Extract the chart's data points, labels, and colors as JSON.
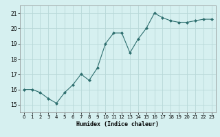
{
  "x": [
    0,
    1,
    2,
    3,
    4,
    5,
    6,
    7,
    8,
    9,
    10,
    11,
    12,
    13,
    14,
    15,
    16,
    17,
    18,
    19,
    20,
    21,
    22,
    23
  ],
  "y": [
    16.0,
    16.0,
    15.8,
    15.4,
    15.1,
    15.8,
    16.3,
    17.0,
    16.6,
    17.4,
    19.0,
    19.7,
    19.7,
    18.4,
    19.3,
    20.0,
    21.0,
    20.7,
    20.5,
    20.4,
    20.4,
    20.5,
    20.6,
    20.6
  ],
  "ylim": [
    14.5,
    21.5
  ],
  "yticks": [
    15,
    16,
    17,
    18,
    19,
    20,
    21
  ],
  "xlim": [
    -0.5,
    23.5
  ],
  "xticks": [
    0,
    1,
    2,
    3,
    4,
    5,
    6,
    7,
    8,
    9,
    10,
    11,
    12,
    13,
    14,
    15,
    16,
    17,
    18,
    19,
    20,
    21,
    22,
    23
  ],
  "xlabel": "Humidex (Indice chaleur)",
  "line_color": "#2d6e6e",
  "marker": "D",
  "marker_size": 2.0,
  "bg_color": "#d6f0f0",
  "grid_color": "#b8d8d8"
}
